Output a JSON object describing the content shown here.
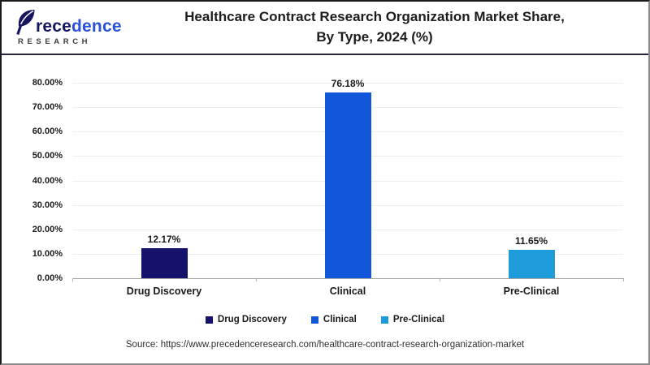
{
  "header": {
    "logo": {
      "text_dark": "rece",
      "text_blue": "dence",
      "subtitle": "RESEARCH"
    },
    "title_line1": "Healthcare Contract Research Organization Market Share,",
    "title_line2": "By Type, 2024 (%)"
  },
  "chart_data": {
    "type": "bar",
    "title": "Healthcare Contract Research Organization Market Share, By Type, 2024 (%)",
    "categories": [
      "Drug Discovery",
      "Clinical",
      "Pre-Clinical"
    ],
    "values": [
      12.17,
      76.18,
      11.65
    ],
    "value_labels": [
      "12.17%",
      "76.18%",
      "11.65%"
    ],
    "bar_colors": [
      "#14126b",
      "#1257d9",
      "#1e9cd9"
    ],
    "xlabel": "",
    "ylabel": "",
    "ylim": [
      0,
      80
    ],
    "ytick_step": 10,
    "ytick_labels": [
      "0.00%",
      "10.00%",
      "20.00%",
      "30.00%",
      "40.00%",
      "50.00%",
      "60.00%",
      "70.00%",
      "80.00%"
    ],
    "grid": true,
    "legend": [
      "Drug Discovery",
      "Clinical",
      "Pre-Clinical"
    ],
    "legend_position": "bottom"
  },
  "footer": {
    "source": "Source: https://www.precedenceresearch.com/healthcare-contract-research-organization-market"
  }
}
